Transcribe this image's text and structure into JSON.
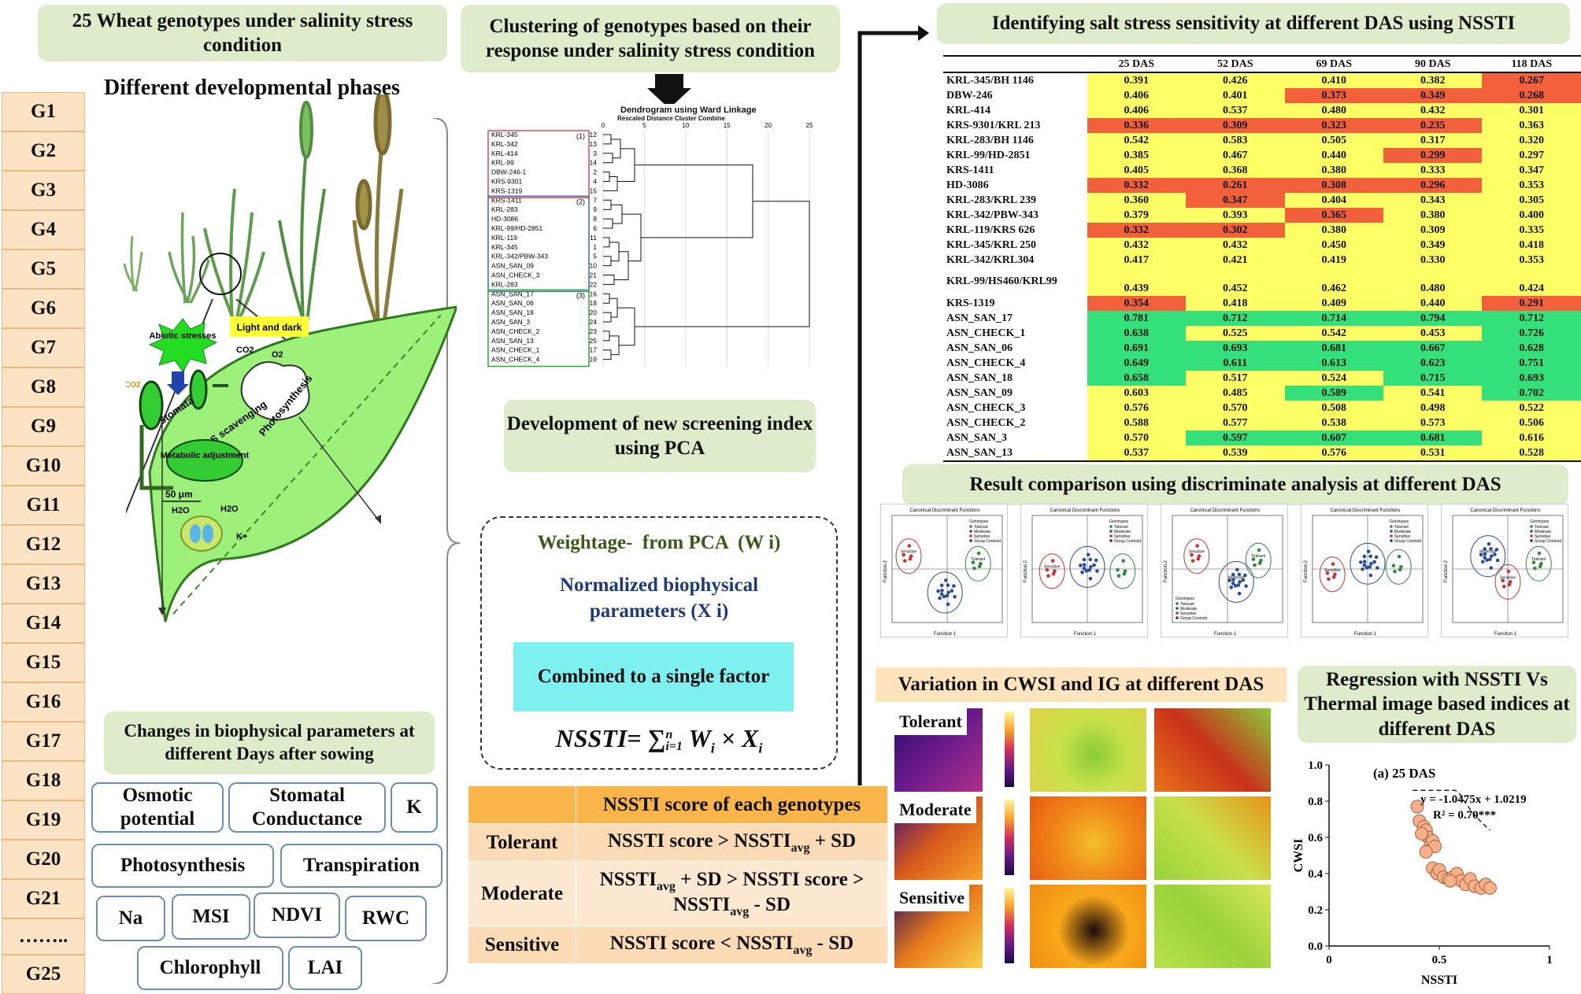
{
  "left": {
    "title": "25 Wheat genotypes under salinity stress condition",
    "phases_title": "Different developmental phases",
    "genotypes": [
      "G1",
      "G2",
      "G3",
      "G4",
      "G5",
      "G6",
      "G7",
      "G8",
      "G9",
      "G10",
      "G11",
      "G12",
      "G13",
      "G14",
      "G15",
      "G16",
      "G17",
      "G18",
      "G19",
      "G20",
      "G21",
      "……..",
      "G25"
    ],
    "leaf_labels": {
      "abiotic": "Abiotic stresses",
      "light": "Light and dark",
      "co2_top": "CO2",
      "o2": "O2",
      "co2_left": "CO2",
      "stomata": "Stomata",
      "ros": "ROS scavenging",
      "photosynthesis": "Photosynthesis",
      "metabolic": "Metabolic adjustment",
      "scale": "50 μm",
      "h2o_left": "H2O",
      "h2o_right": "H2O",
      "k": "K+"
    },
    "changes_title": "Changes in biophysical parameters at different Days after sowing",
    "parameters": {
      "osmotic": "Osmotic potential",
      "stomatal": "Stomatal Conductance",
      "k": "K",
      "photosynthesis": "Photosynthesis",
      "transpiration": "Transpiration",
      "na": "Na",
      "msi": "MSI",
      "ndvi": "NDVI",
      "rwc": "RWC",
      "chlorophyll": "Chlorophyll",
      "lai": "LAI"
    }
  },
  "middle": {
    "cluster_title": "Clustering of genotypes based on their response under salinity stress condition",
    "dendrogram": {
      "title": "Dendrogram using Ward Linkage",
      "subtitle": "Rescaled Distance Cluster Combine",
      "axis_ticks": [
        "0",
        "5",
        "10",
        "15",
        "20",
        "25"
      ],
      "groups": [
        "(1)",
        "(2)",
        "(3)"
      ],
      "labels": [
        "KRL-345",
        "KRL-342",
        "KRL-414",
        "KRL-99",
        "DBW-246-1",
        "KRS-9301",
        "KRS-1319",
        "KRS-1411",
        "KRL-283",
        "HD-3086",
        "KRL-99/HD-2851",
        "KRL-119",
        "KRL-345",
        "KRL-342/PBW-343",
        "ASN_SAN_09",
        "ASN_CHECK_3",
        "KRL-283",
        "ASN_SAN_17",
        "ASN_SAN_06",
        "ASN_SAN_18",
        "ASN_SAN_3",
        "ASN_CHECK_2",
        "ASN_SAN_13",
        "ASN_CHECK_1",
        "ASN_CHECK_4"
      ],
      "numbers": [
        "12",
        "13",
        "3",
        "14",
        "2",
        "4",
        "15",
        "7",
        "9",
        "8",
        "6",
        "11",
        "1",
        "5",
        "10",
        "21",
        "22",
        "16",
        "18",
        "20",
        "24",
        "23",
        "25",
        "17",
        "19"
      ]
    },
    "pca_title": "Development of new screening index using PCA",
    "weightage": "Weightage-  from PCA  (W i)",
    "normalized": "Normalized biophysical parameters (X i)",
    "combined": "Combined to a single factor",
    "formula": {
      "lhs": "NSSTI= ",
      "sum": "∑",
      "sup": "n",
      "sub": "i=1",
      "rhs": " W",
      "wi": "i",
      "times": " × X",
      "xi": "i"
    },
    "score_table": {
      "header": "NSSTI score of each genotypes",
      "rows": [
        {
          "class": "Tolerant",
          "rule_pre": "NSSTI score > NSSTI",
          "rule_sub": "avg",
          "rule_post": " + SD"
        },
        {
          "class": "Moderate",
          "rule_pre": "NSSTI",
          "rule_sub": "avg",
          "rule_mid": " + SD > NSSTI score > NSSTI",
          "rule_sub2": "avg",
          "rule_post": " - SD"
        },
        {
          "class": "Sensitive",
          "rule_pre": "NSSTI score < NSSTI",
          "rule_sub": "avg",
          "rule_post": " - SD"
        }
      ]
    }
  },
  "right": {
    "nssti_title": "Identifying salt stress sensitivity at different DAS using NSSTI",
    "columns": [
      "25 DAS",
      "52 DAS",
      "69 DAS",
      "90 DAS",
      "118 DAS"
    ],
    "rows": [
      {
        "name": "KRL-345/BH 1146",
        "v": [
          "0.391",
          "0.426",
          "0.410",
          "0.382",
          "0.267"
        ],
        "c": [
          "y",
          "y",
          "y",
          "y",
          "r"
        ]
      },
      {
        "name": "DBW-246",
        "v": [
          "0.406",
          "0.401",
          "0.373",
          "0.349",
          "0.268"
        ],
        "c": [
          "y",
          "y",
          "r",
          "r",
          "r"
        ]
      },
      {
        "name": "KRL-414",
        "v": [
          "0.406",
          "0.537",
          "0.480",
          "0.432",
          "0.301"
        ],
        "c": [
          "y",
          "y",
          "y",
          "y",
          "y"
        ]
      },
      {
        "name": "KRS-9301/KRL 213",
        "v": [
          "0.336",
          "0.309",
          "0.323",
          "0.235",
          "0.363"
        ],
        "c": [
          "r",
          "r",
          "r",
          "r",
          "y"
        ]
      },
      {
        "name": "KRL-283/BH 1146",
        "v": [
          "0.542",
          "0.583",
          "0.505",
          "0.317",
          "0.320"
        ],
        "c": [
          "y",
          "y",
          "y",
          "y",
          "y"
        ]
      },
      {
        "name": "KRL-99/HD-2851",
        "v": [
          "0.385",
          "0.467",
          "0.440",
          "0.299",
          "0.297"
        ],
        "c": [
          "y",
          "y",
          "y",
          "r",
          "y"
        ]
      },
      {
        "name": "KRS-1411",
        "v": [
          "0.405",
          "0.368",
          "0.380",
          "0.333",
          "0.347"
        ],
        "c": [
          "y",
          "y",
          "y",
          "y",
          "y"
        ]
      },
      {
        "name": "HD-3086",
        "v": [
          "0.332",
          "0.261",
          "0.308",
          "0.296",
          "0.353"
        ],
        "c": [
          "r",
          "r",
          "r",
          "r",
          "y"
        ]
      },
      {
        "name": "KRL-283/KRL 239",
        "v": [
          "0.360",
          "0.347",
          "0.404",
          "0.343",
          "0.305"
        ],
        "c": [
          "y",
          "r",
          "y",
          "y",
          "y"
        ]
      },
      {
        "name": "KRL-342/PBW-343",
        "v": [
          "0.379",
          "0.393",
          "0.365",
          "0.380",
          "0.400"
        ],
        "c": [
          "y",
          "y",
          "r",
          "y",
          "y"
        ]
      },
      {
        "name": "KRL-119/KRS 626",
        "v": [
          "0.332",
          "0.302",
          "0.380",
          "0.309",
          "0.335"
        ],
        "c": [
          "r",
          "r",
          "y",
          "y",
          "y"
        ]
      },
      {
        "name": "KRL-345/KRL 250",
        "v": [
          "0.432",
          "0.432",
          "0.450",
          "0.349",
          "0.418"
        ],
        "c": [
          "y",
          "y",
          "y",
          "y",
          "y"
        ]
      },
      {
        "name": "KRL-342/KRL304",
        "v": [
          "0.417",
          "0.421",
          "0.419",
          "0.330",
          "0.353"
        ],
        "c": [
          "y",
          "y",
          "y",
          "y",
          "y"
        ]
      },
      {
        "name": "KRL-99/HS460/KRL99",
        "v": [
          "0.439",
          "0.452",
          "0.462",
          "0.480",
          "0.424"
        ],
        "c": [
          "y",
          "y",
          "y",
          "y",
          "y"
        ]
      },
      {
        "name": "KRS-1319",
        "v": [
          "0.354",
          "0.418",
          "0.409",
          "0.440",
          "0.291"
        ],
        "c": [
          "r",
          "y",
          "y",
          "y",
          "r"
        ]
      },
      {
        "name": "ASN_SAN_17",
        "v": [
          "0.781",
          "0.712",
          "0.714",
          "0.794",
          "0.712"
        ],
        "c": [
          "g",
          "g",
          "g",
          "g",
          "g"
        ]
      },
      {
        "name": "ASN_CHECK_1",
        "v": [
          "0.638",
          "0.525",
          "0.542",
          "0.453",
          "0.726"
        ],
        "c": [
          "g",
          "y",
          "y",
          "y",
          "g"
        ]
      },
      {
        "name": "ASN_SAN_06",
        "v": [
          "0.691",
          "0.693",
          "0.681",
          "0.667",
          "0.628"
        ],
        "c": [
          "g",
          "g",
          "g",
          "g",
          "g"
        ]
      },
      {
        "name": "ASN_CHECK_4",
        "v": [
          "0.649",
          "0.611",
          "0.613",
          "0.623",
          "0.751"
        ],
        "c": [
          "g",
          "g",
          "g",
          "g",
          "g"
        ]
      },
      {
        "name": "ASN_SAN_18",
        "v": [
          "0.658",
          "0.517",
          "0.524",
          "0.715",
          "0.693"
        ],
        "c": [
          "g",
          "y",
          "y",
          "g",
          "g"
        ]
      },
      {
        "name": "ASN_SAN_09",
        "v": [
          "0.603",
          "0.485",
          "0.589",
          "0.541",
          "0.702"
        ],
        "c": [
          "y",
          "y",
          "g",
          "y",
          "g"
        ]
      },
      {
        "name": "ASN_CHECK_3",
        "v": [
          "0.576",
          "0.570",
          "0.508",
          "0.498",
          "0.522"
        ],
        "c": [
          "y",
          "y",
          "y",
          "y",
          "y"
        ]
      },
      {
        "name": "ASN_CHECK_2",
        "v": [
          "0.588",
          "0.577",
          "0.538",
          "0.573",
          "0.506"
        ],
        "c": [
          "y",
          "y",
          "y",
          "y",
          "y"
        ]
      },
      {
        "name": "ASN_SAN_3",
        "v": [
          "0.570",
          "0.597",
          "0.607",
          "0.681",
          "0.616"
        ],
        "c": [
          "y",
          "g",
          "g",
          "g",
          "y"
        ]
      },
      {
        "name": "ASN_SAN_13",
        "v": [
          "0.537",
          "0.539",
          "0.576",
          "0.531",
          "0.528"
        ],
        "c": [
          "y",
          "y",
          "y",
          "y",
          "y"
        ]
      }
    ],
    "lda_title": "Result comparison using discriminate analysis at different DAS",
    "lda": {
      "panel_title": "Canonical Discriminant Functions",
      "xlabel": "Function 1",
      "ylabel": "Function 2",
      "legend_title": "Genotypes",
      "legend": [
        "Tolerant",
        "Moderate",
        "Sensitive",
        "Group Centroid"
      ],
      "group_labels": [
        "Tolerant",
        "Moderate",
        "Sensitive"
      ]
    },
    "cwsi_title": "Variation in CWSI and IG at different DAS",
    "thermal_rows": [
      "Tolerant",
      "Moderate",
      "Sensitive"
    ],
    "regression_title": "Regression with NSSTI Vs Thermal image based indices at different DAS",
    "chart_data": {
      "type": "scatter",
      "title": "(a) 25 DAS",
      "xlabel": "NSSTI",
      "ylabel": "CWSI",
      "xlim": [
        0,
        1
      ],
      "ylim": [
        0.0,
        1.0
      ],
      "x_ticks": [
        "0",
        "0.5",
        "1"
      ],
      "y_ticks": [
        "0.0",
        "0.2",
        "0.4",
        "0.6",
        "0.8",
        "1.0"
      ],
      "equation": "y = -1.0475x + 1.0219",
      "r2": "R² = 0.70***",
      "points": [
        [
          0.4,
          0.77
        ],
        [
          0.41,
          0.69
        ],
        [
          0.43,
          0.66
        ],
        [
          0.44,
          0.64
        ],
        [
          0.45,
          0.6
        ],
        [
          0.46,
          0.56
        ],
        [
          0.47,
          0.58
        ],
        [
          0.48,
          0.55
        ],
        [
          0.42,
          0.62
        ],
        [
          0.44,
          0.52
        ],
        [
          0.47,
          0.43
        ],
        [
          0.49,
          0.4
        ],
        [
          0.5,
          0.42
        ],
        [
          0.52,
          0.38
        ],
        [
          0.54,
          0.37
        ],
        [
          0.56,
          0.38
        ],
        [
          0.58,
          0.4
        ],
        [
          0.6,
          0.36
        ],
        [
          0.62,
          0.34
        ],
        [
          0.64,
          0.37
        ],
        [
          0.66,
          0.33
        ],
        [
          0.69,
          0.32
        ],
        [
          0.71,
          0.34
        ],
        [
          0.73,
          0.32
        ],
        [
          0.55,
          0.36
        ]
      ]
    }
  }
}
